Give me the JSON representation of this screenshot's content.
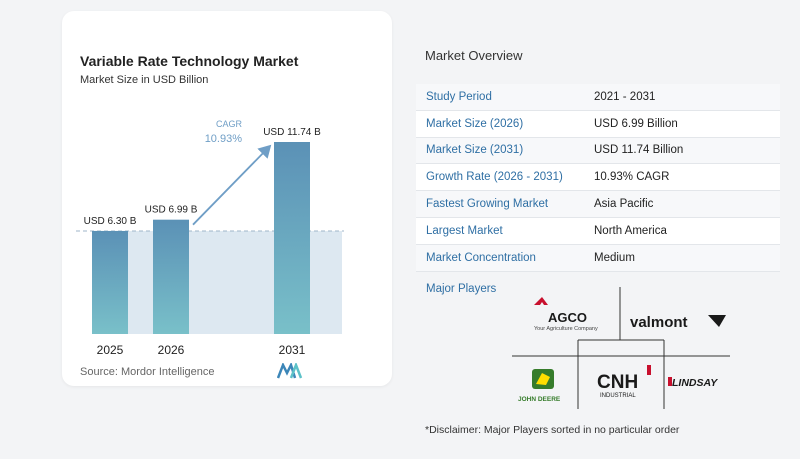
{
  "chart": {
    "title": "Variable Rate Technology Market",
    "subtitle": "Market Size in USD Billion",
    "cagr_label": "CAGR",
    "cagr_value": "10.93%",
    "source": "Source:  Mordor Intelligence"
  },
  "chart_data": {
    "type": "bar",
    "title": "Variable Rate Technology Market",
    "subtitle": "Market Size in USD Billion",
    "categories": [
      "2025",
      "2026",
      "2031"
    ],
    "values": [
      6.3,
      6.99,
      11.74
    ],
    "data_labels": [
      "USD 6.30 B",
      "USD 6.99 B",
      "USD 11.74 B"
    ],
    "annotation": {
      "label": "CAGR",
      "value": "10.93%"
    },
    "ylim": [
      0,
      12
    ],
    "grid": false,
    "colors": {
      "bar_top": "#5b91b6",
      "bar_bottom": "#79c0c9",
      "area": "#dde8f1",
      "arrow": "#6f9ec6"
    }
  },
  "overview": {
    "title": "Market Overview",
    "rows": [
      {
        "key": "Study Period",
        "value": "2021 - 2031"
      },
      {
        "key": "Market Size (2026)",
        "value": "USD 6.99 Billion"
      },
      {
        "key": "Market Size (2031)",
        "value": "USD 11.74 Billion"
      },
      {
        "key": "Growth Rate (2026 - 2031)",
        "value": "10.93% CAGR"
      },
      {
        "key": "Fastest Growing Market",
        "value": "Asia Pacific"
      },
      {
        "key": "Largest Market",
        "value": "North America"
      },
      {
        "key": "Market Concentration",
        "value": "Medium"
      }
    ]
  },
  "players": {
    "title": "Major Players",
    "agco": "AGCO",
    "agco_tagline": "Your Agriculture Company",
    "valmont": "valmont",
    "john_deere": "JOHN DEERE",
    "cnh": "CNH",
    "cnh_sub": "INDUSTRIAL",
    "lindsay": "LINDSAY"
  },
  "disclaimer": "*Disclaimer: Major Players sorted in no particular order"
}
